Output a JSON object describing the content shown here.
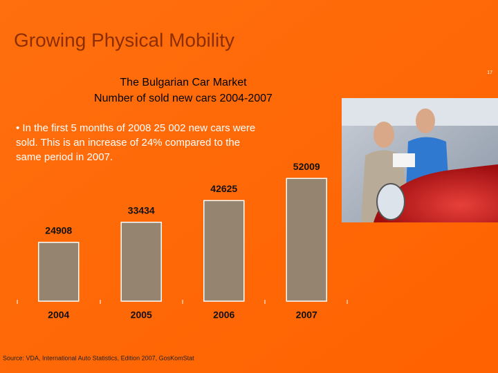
{
  "slide_title": "Growing Physical Mobility",
  "page_number": "17",
  "bullet_text": [
    "• In the first 5 months of 2008 25 002 new cars were",
    "sold. This is an increase of 24% compared to the",
    "same period in 2007."
  ],
  "source": "Source: VDA, International Auto Statistics, Edition 2007, GosKomStat",
  "chart_data": {
    "type": "bar",
    "title": "The Bulgarian Car Market",
    "subtitle": "Number of sold new cars 2004-2007",
    "categories": [
      "2004",
      "2005",
      "2006",
      "2007"
    ],
    "values": [
      24908,
      33434,
      42625,
      52009
    ],
    "color": "#948470",
    "ylim": [
      0,
      60000
    ]
  }
}
